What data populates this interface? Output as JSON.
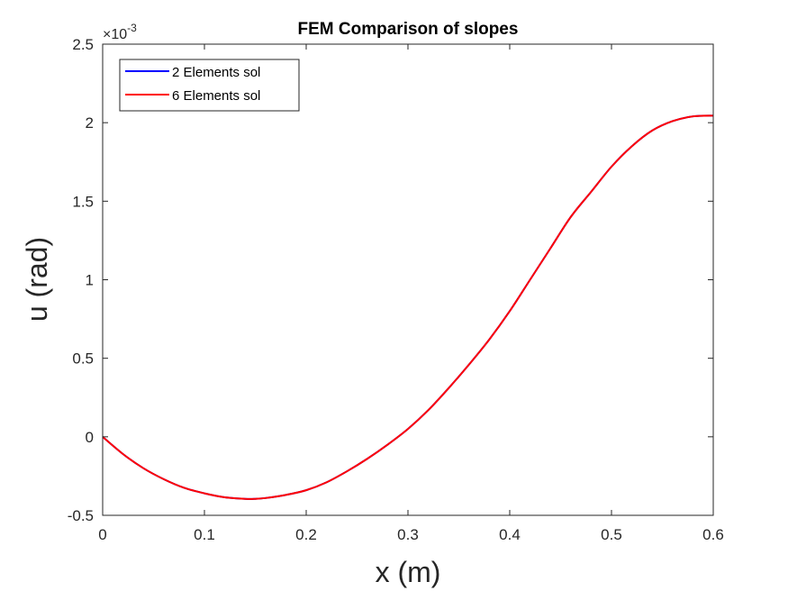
{
  "chart_data": {
    "type": "line",
    "title": "FEM Comparison of slopes",
    "xlabel": "x (m)",
    "ylabel": "u (rad)",
    "xlim": [
      0,
      0.6
    ],
    "ylim": [
      -0.5,
      2.5
    ],
    "x_ticks": [
      0,
      0.1,
      0.2,
      0.3,
      0.4,
      0.5,
      0.6
    ],
    "x_tick_labels": [
      "0",
      "0.1",
      "0.2",
      "0.3",
      "0.4",
      "0.5",
      "0.6"
    ],
    "y_ticks": [
      -0.5,
      0,
      0.5,
      1,
      1.5,
      2,
      2.5
    ],
    "y_tick_labels": [
      "-0.5",
      "0",
      "0.5",
      "1",
      "1.5",
      "2",
      "2.5"
    ],
    "y_exponent": {
      "base": "×10",
      "power": "-3"
    },
    "grid": false,
    "legend_position": "top-left",
    "series": [
      {
        "name": "2 Elements sol",
        "color": "#0000ff",
        "x": [
          0,
          0.02,
          0.04,
          0.06,
          0.08,
          0.1,
          0.12,
          0.14,
          0.15,
          0.16,
          0.18,
          0.2,
          0.22,
          0.24,
          0.26,
          0.28,
          0.3,
          0.32,
          0.34,
          0.36,
          0.38,
          0.4,
          0.42,
          0.44,
          0.46,
          0.48,
          0.5,
          0.52,
          0.54,
          0.56,
          0.58,
          0.6
        ],
        "y": [
          0,
          -0.11,
          -0.2,
          -0.27,
          -0.325,
          -0.36,
          -0.385,
          -0.395,
          -0.395,
          -0.39,
          -0.37,
          -0.34,
          -0.29,
          -0.22,
          -0.14,
          -0.05,
          0.05,
          0.17,
          0.31,
          0.46,
          0.62,
          0.8,
          1.0,
          1.2,
          1.4,
          1.56,
          1.72,
          1.85,
          1.95,
          2.01,
          2.04,
          2.045
        ]
      },
      {
        "name": "6 Elements sol",
        "color": "#ff0000",
        "x": [
          0,
          0.02,
          0.04,
          0.06,
          0.08,
          0.1,
          0.12,
          0.14,
          0.15,
          0.16,
          0.18,
          0.2,
          0.22,
          0.24,
          0.26,
          0.28,
          0.3,
          0.32,
          0.34,
          0.36,
          0.38,
          0.4,
          0.42,
          0.44,
          0.46,
          0.48,
          0.5,
          0.52,
          0.54,
          0.56,
          0.58,
          0.6
        ],
        "y": [
          0,
          -0.11,
          -0.2,
          -0.27,
          -0.325,
          -0.36,
          -0.385,
          -0.395,
          -0.395,
          -0.39,
          -0.37,
          -0.34,
          -0.29,
          -0.22,
          -0.14,
          -0.05,
          0.05,
          0.17,
          0.31,
          0.46,
          0.62,
          0.8,
          1.0,
          1.2,
          1.4,
          1.56,
          1.72,
          1.85,
          1.95,
          2.01,
          2.04,
          2.045
        ]
      }
    ]
  }
}
